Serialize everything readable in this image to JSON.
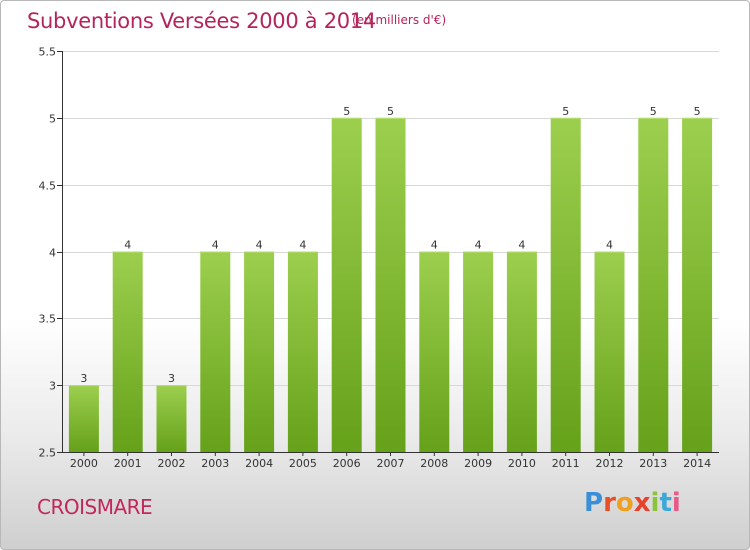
{
  "header": {
    "title": "Subventions Versées 2000 à 2014",
    "unit_note": "(en milliers d'€)"
  },
  "footer": {
    "commune": "CROISMARE",
    "logo_text": "Proxiti"
  },
  "colors": {
    "title": "#b5245a",
    "bar_top": "#9ccf4e",
    "bar_bottom": "#66a11a",
    "grid": "#d8d8d8",
    "axis": "#333333"
  },
  "chart_data": {
    "type": "bar",
    "title": "Subventions Versées 2000 à 2014",
    "subtitle": "(en milliers d'€)",
    "xlabel": "",
    "ylabel": "",
    "categories": [
      "2000",
      "2001",
      "2002",
      "2003",
      "2004",
      "2005",
      "2006",
      "2007",
      "2008",
      "2009",
      "2010",
      "2011",
      "2012",
      "2013",
      "2014"
    ],
    "values": [
      3,
      4,
      3,
      4,
      4,
      4,
      5,
      5,
      4,
      4,
      4,
      5,
      4,
      5,
      5
    ],
    "data_labels": [
      "3",
      "4",
      "3",
      "4",
      "4",
      "4",
      "5",
      "5",
      "4",
      "4",
      "4",
      "5",
      "4",
      "5",
      "5"
    ],
    "ylim": [
      2.5,
      5.5
    ],
    "yticks": [
      2.5,
      3,
      3.5,
      4,
      4.5,
      5,
      5.5
    ],
    "ytick_labels": [
      "2.5",
      "3",
      "3.5",
      "4",
      "4.5",
      "5",
      "5.5"
    ],
    "grid": true,
    "legend": "none"
  }
}
